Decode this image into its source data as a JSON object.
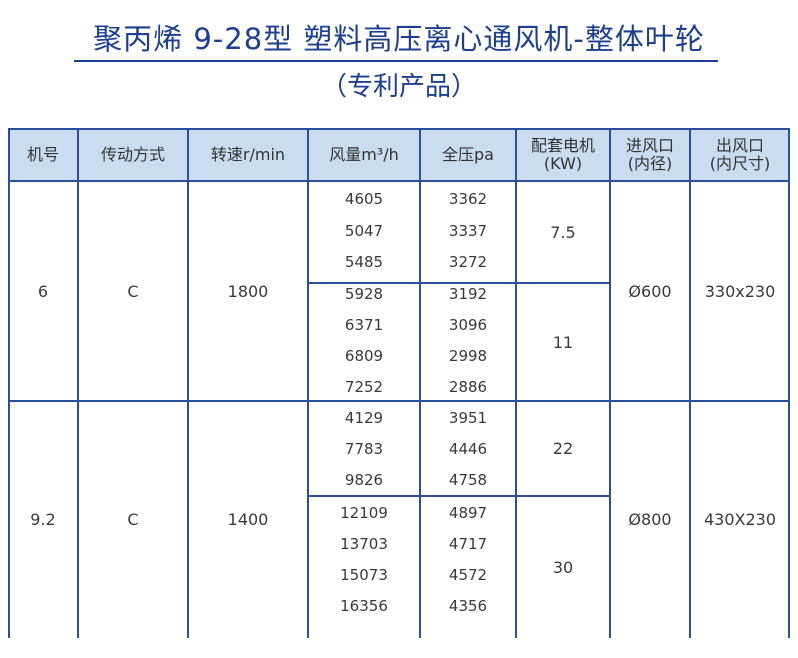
{
  "title": "聚丙烯 9-28型 塑料高压离心通风机-整体叶轮",
  "subtitle": "（专利产品）",
  "headers": {
    "model": "机号",
    "drive": "传动方式",
    "speed": "转速r/min",
    "airflow": "风量m³/h",
    "pressure": "全压pa",
    "power": "配套电机\n(KW)",
    "inlet": "进风口\n(内径)",
    "outlet": "出风口\n(内尺寸)"
  },
  "groups": [
    {
      "model": "6",
      "drive": "C",
      "speed": "1800",
      "inlet": "Ø600",
      "outlet": "330x230",
      "subgroups": [
        {
          "power": "7.5",
          "rows": [
            {
              "airflow": "4605",
              "pressure": "3362"
            },
            {
              "airflow": "5047",
              "pressure": "3337"
            },
            {
              "airflow": "5485",
              "pressure": "3272"
            }
          ]
        },
        {
          "power": "11",
          "rows": [
            {
              "airflow": "5928",
              "pressure": "3192"
            },
            {
              "airflow": "6371",
              "pressure": "3096"
            },
            {
              "airflow": "6809",
              "pressure": "2998"
            },
            {
              "airflow": "7252",
              "pressure": "2886"
            }
          ]
        }
      ]
    },
    {
      "model": "9.2",
      "drive": "C",
      "speed": "1400",
      "inlet": "Ø800",
      "outlet": "430X230",
      "subgroups": [
        {
          "power": "22",
          "rows": [
            {
              "airflow": "4129",
              "pressure": "3951"
            },
            {
              "airflow": "7783",
              "pressure": "4446"
            },
            {
              "airflow": "9826",
              "pressure": "4758"
            }
          ]
        },
        {
          "power": "30",
          "rows": [
            {
              "airflow": "12109",
              "pressure": "4897"
            },
            {
              "airflow": "13703",
              "pressure": "4717"
            },
            {
              "airflow": "15073",
              "pressure": "4572"
            },
            {
              "airflow": "16356",
              "pressure": "4356"
            }
          ]
        }
      ]
    }
  ],
  "colors": {
    "accent": "#1d3f8f",
    "header_bg": "#c9dcf0",
    "grid": "#2b4f9c"
  }
}
